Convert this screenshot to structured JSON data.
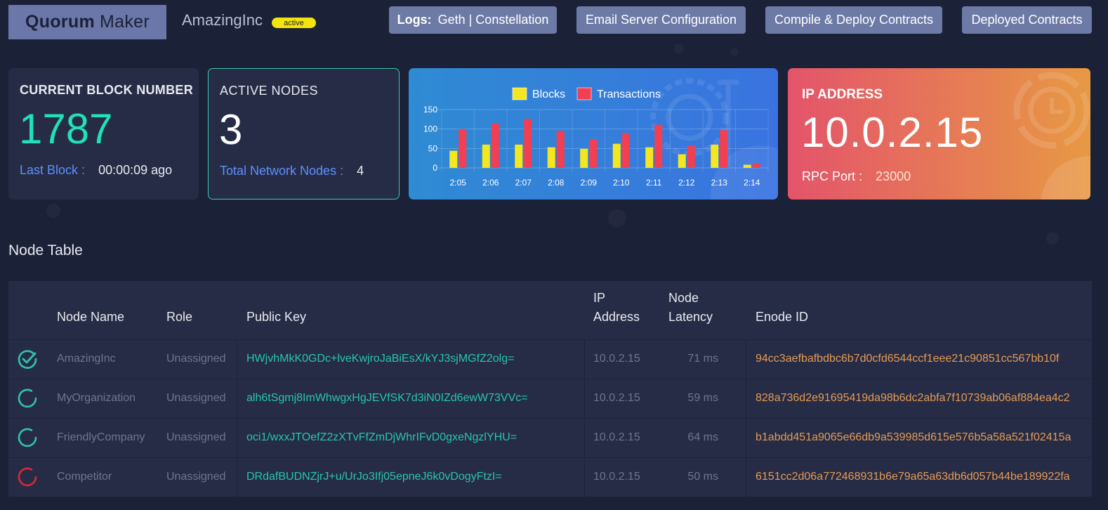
{
  "header": {
    "logo_bold": "Quorum",
    "logo_light": "Maker",
    "org_name": "AmazingInc",
    "status_badge": "active",
    "buttons": {
      "logs_label": "Logs:",
      "logs_links": "Geth | Constellation",
      "email": "Email Server Configuration",
      "compile": "Compile & Deploy Contracts",
      "deployed": "Deployed Contracts"
    }
  },
  "cards": {
    "block": {
      "title": "CURRENT BLOCK NUMBER",
      "value": "1787",
      "sub_label": "Last Block :",
      "sub_value": "00:00:09 ago"
    },
    "nodes": {
      "title": "ACTIVE NODES",
      "value": "3",
      "sub_label": "Total Network Nodes :",
      "sub_value": "4"
    },
    "ip": {
      "title": "IP ADDRESS",
      "value": "10.0.2.15",
      "port_label": "RPC Port :",
      "port_value": "23000"
    }
  },
  "chart_data": {
    "type": "bar",
    "categories": [
      "2:05",
      "2:06",
      "2:07",
      "2:08",
      "2:09",
      "2:10",
      "2:11",
      "2:12",
      "2:13",
      "2:14"
    ],
    "series": [
      {
        "name": "Blocks",
        "color": "#f5e71f",
        "values": [
          44,
          60,
          60,
          53,
          49,
          62,
          53,
          35,
          60,
          8
        ]
      },
      {
        "name": "Transactions",
        "color": "#f23f52",
        "values": [
          100,
          114,
          126,
          95,
          74,
          89,
          111,
          57,
          97,
          12
        ]
      }
    ],
    "yticks": [
      0,
      50,
      100,
      150
    ],
    "ylim": [
      0,
      150
    ],
    "legend": "top-center",
    "grid": true
  },
  "table": {
    "title": "Node Table",
    "headers": {
      "name": "Node Name",
      "role": "Role",
      "key": "Public Key",
      "ip_line1": "IP",
      "ip_line2": "Address",
      "latency_line1": "Node",
      "latency_line2": "Latency",
      "enode": "Enode ID"
    },
    "rows": [
      {
        "status": "connected",
        "status_color": "#2ec4b0",
        "name": "AmazingInc",
        "role": "Unassigned",
        "key": "HWjvhMkK0GDc+lveKwjroJaBiEsX/kYJ3sjMGfZ2olg=",
        "ip": "10.0.2.15",
        "latency": "71 ms",
        "enode": "94cc3aefbafbdbc6b7d0cfd6544ccf1eee21c90851cc567bb10f"
      },
      {
        "status": "syncing",
        "status_color": "#2ec4b0",
        "name": "MyOrganization",
        "role": "Unassigned",
        "key": "alh6tSgmj8ImWhwgxHgJEVfSK7d3iN0IZd6ewW73VVc=",
        "ip": "10.0.2.15",
        "latency": "59 ms",
        "enode": "828a736d2e91695419da98b6dc2abfa7f10739ab06af884ea4c2"
      },
      {
        "status": "syncing",
        "status_color": "#2ec4b0",
        "name": "FriendlyCompany",
        "role": "Unassigned",
        "key": "oci1/wxxJTOefZ2zXTvFfZmDjWhrIFvD0gxeNgzlYHU=",
        "ip": "10.0.2.15",
        "latency": "64 ms",
        "enode": "b1abdd451a9065e66db9a539985d615e576b5a58a521f02415a"
      },
      {
        "status": "error",
        "status_color": "#d9283b",
        "name": "Competitor",
        "role": "Unassigned",
        "key": "DRdafBUDNZjrJ+u/UrJo3Ifj05epneJ6k0vDogyFtzI=",
        "ip": "10.0.2.15",
        "latency": "50 ms",
        "enode": "6151cc2d06a772468931b6e79a65a63db6d057b44be189922fa"
      }
    ]
  }
}
